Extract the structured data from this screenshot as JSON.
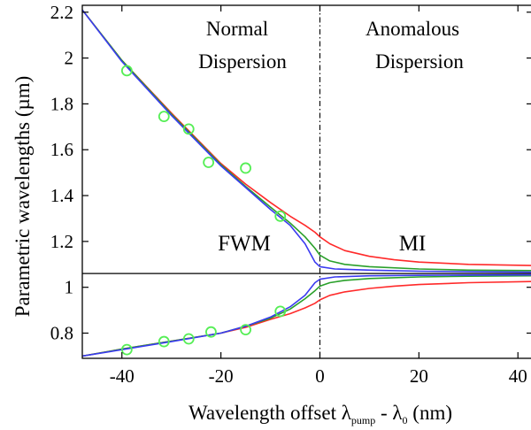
{
  "chart_data": {
    "type": "line",
    "title": "",
    "xlabel": {
      "main": "Wavelength offset λ",
      "sub1": "pump",
      "mid": " - λ",
      "sub2": "0",
      "end": " (nm)"
    },
    "ylabel": "Parametric wavelengths (µm)",
    "xlim": [
      -48,
      43
    ],
    "ylim": [
      0.69,
      2.23
    ],
    "xticks": [
      {
        "value": -40,
        "label": "-40"
      },
      {
        "value": -20,
        "label": "-20"
      },
      {
        "value": 0,
        "label": "0"
      },
      {
        "value": 20,
        "label": "20"
      },
      {
        "value": 40,
        "label": "40"
      }
    ],
    "yticks": [
      {
        "value": 0.8,
        "label": "0.8"
      },
      {
        "value": 1.0,
        "label": "1"
      },
      {
        "value": 1.2,
        "label": "1.2"
      },
      {
        "value": 1.4,
        "label": "1.4"
      },
      {
        "value": 1.6,
        "label": "1.6"
      },
      {
        "value": 1.8,
        "label": "1.8"
      },
      {
        "value": 2.0,
        "label": "2"
      },
      {
        "value": 2.2,
        "label": "2.2"
      }
    ],
    "reference_lines": {
      "pump_wavelength": 1.06,
      "zero_dispersion_offset": 0
    },
    "region_labels": {
      "normal": [
        "Normal",
        "Dispersion"
      ],
      "anomalous": [
        "Anomalous",
        "Dispersion"
      ],
      "fwm": "FWM",
      "mi": "MI"
    },
    "series": [
      {
        "color": "#ff2a2a",
        "upper": [
          [
            -48,
            2.21
          ],
          [
            -40,
            1.99
          ],
          [
            -30,
            1.76
          ],
          [
            -20,
            1.54
          ],
          [
            -15,
            1.45
          ],
          [
            -10,
            1.37
          ],
          [
            -6,
            1.31
          ],
          [
            -3,
            1.27
          ],
          [
            -1,
            1.24
          ],
          [
            0,
            1.22
          ],
          [
            2,
            1.19
          ],
          [
            5,
            1.16
          ],
          [
            10,
            1.135
          ],
          [
            15,
            1.12
          ],
          [
            20,
            1.11
          ],
          [
            30,
            1.1
          ],
          [
            43,
            1.095
          ]
        ],
        "lower": [
          [
            -48,
            0.7
          ],
          [
            -40,
            0.73
          ],
          [
            -30,
            0.765
          ],
          [
            -20,
            0.8
          ],
          [
            -15,
            0.825
          ],
          [
            -10,
            0.86
          ],
          [
            -6,
            0.885
          ],
          [
            -3,
            0.91
          ],
          [
            -1,
            0.93
          ],
          [
            0,
            0.945
          ],
          [
            2,
            0.965
          ],
          [
            5,
            0.98
          ],
          [
            10,
            0.995
          ],
          [
            15,
            1.005
          ],
          [
            20,
            1.012
          ],
          [
            30,
            1.02
          ],
          [
            43,
            1.025
          ]
        ]
      },
      {
        "color": "#2aa02a",
        "upper": [
          [
            -48,
            2.21
          ],
          [
            -40,
            1.99
          ],
          [
            -30,
            1.755
          ],
          [
            -20,
            1.535
          ],
          [
            -15,
            1.44
          ],
          [
            -10,
            1.35
          ],
          [
            -6,
            1.28
          ],
          [
            -3,
            1.22
          ],
          [
            -1,
            1.17
          ],
          [
            0,
            1.14
          ],
          [
            2,
            1.115
          ],
          [
            5,
            1.1
          ],
          [
            10,
            1.09
          ],
          [
            20,
            1.08
          ],
          [
            30,
            1.075
          ],
          [
            43,
            1.073
          ]
        ],
        "lower": [
          [
            -48,
            0.7
          ],
          [
            -40,
            0.73
          ],
          [
            -30,
            0.765
          ],
          [
            -20,
            0.8
          ],
          [
            -15,
            0.83
          ],
          [
            -10,
            0.865
          ],
          [
            -6,
            0.905
          ],
          [
            -3,
            0.95
          ],
          [
            -1,
            0.985
          ],
          [
            0,
            1.005
          ],
          [
            2,
            1.02
          ],
          [
            5,
            1.03
          ],
          [
            10,
            1.038
          ],
          [
            20,
            1.045
          ],
          [
            30,
            1.048
          ],
          [
            43,
            1.05
          ]
        ]
      },
      {
        "color": "#3a3af0",
        "upper": [
          [
            -48,
            2.21
          ],
          [
            -40,
            1.985
          ],
          [
            -30,
            1.75
          ],
          [
            -20,
            1.53
          ],
          [
            -15,
            1.435
          ],
          [
            -10,
            1.34
          ],
          [
            -6,
            1.27
          ],
          [
            -3,
            1.19
          ],
          [
            -1,
            1.11
          ],
          [
            0,
            1.09
          ],
          [
            3,
            1.08
          ],
          [
            10,
            1.075
          ],
          [
            20,
            1.07
          ],
          [
            30,
            1.068
          ],
          [
            43,
            1.066
          ]
        ],
        "lower": [
          [
            -48,
            0.7
          ],
          [
            -40,
            0.728
          ],
          [
            -30,
            0.763
          ],
          [
            -20,
            0.8
          ],
          [
            -15,
            0.83
          ],
          [
            -10,
            0.87
          ],
          [
            -6,
            0.915
          ],
          [
            -3,
            0.965
          ],
          [
            -1,
            1.02
          ],
          [
            0,
            1.035
          ],
          [
            3,
            1.045
          ],
          [
            10,
            1.05
          ],
          [
            20,
            1.052
          ],
          [
            30,
            1.053
          ],
          [
            43,
            1.054
          ]
        ]
      }
    ],
    "measured": {
      "marker": "open-circle",
      "color": "#55ee55",
      "points": [
        [
          -39,
          1.945
        ],
        [
          -31.5,
          1.745
        ],
        [
          -26.5,
          1.69
        ],
        [
          -22.5,
          1.545
        ],
        [
          -15,
          1.52
        ],
        [
          -8,
          1.31
        ],
        [
          -39,
          0.728
        ],
        [
          -31.5,
          0.763
        ],
        [
          -26.5,
          0.775
        ],
        [
          -22,
          0.805
        ],
        [
          -15,
          0.815
        ],
        [
          -8,
          0.895
        ]
      ]
    }
  }
}
